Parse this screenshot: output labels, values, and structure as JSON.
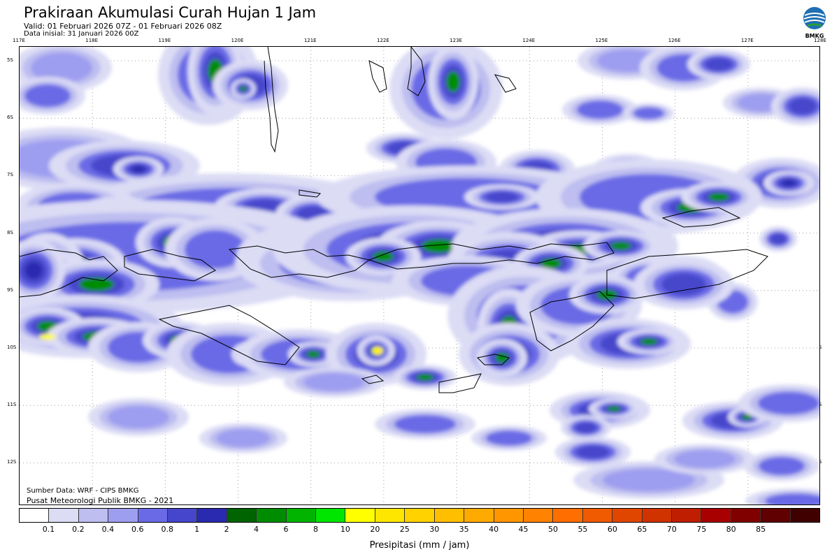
{
  "header": {
    "title": "Prakiraan Akumulasi Curah Hujan 1 Jam",
    "valid": "Valid: 01 Februari 2026 07Z - 01 Februari 2026 08Z",
    "initial": "Data inisial: 31 Januari 2026 00Z"
  },
  "logo": {
    "label": "BMKG",
    "icon": "bmkg-logo-icon"
  },
  "map": {
    "lon_labels": [
      "117E",
      "118E",
      "119E",
      "120E",
      "121E",
      "122E",
      "123E",
      "124E",
      "125E",
      "126E",
      "127E",
      "128E"
    ],
    "lat_labels": [
      "5S",
      "6S",
      "7S",
      "8S",
      "9S",
      "10S",
      "11S",
      "12S"
    ],
    "source": "Sumber Data: WRF - CIPS BMKG",
    "credit": "Pusat Meteorologi Publik BMKG - 2021"
  },
  "colorbar": {
    "colors": [
      "#ffffff",
      "#dcdcf5",
      "#bebef0",
      "#9e9ef0",
      "#6a6ae6",
      "#4646cc",
      "#2a2ab0",
      "#006400",
      "#008c00",
      "#00b400",
      "#00e600",
      "#ffff00",
      "#ffe600",
      "#ffd200",
      "#ffbe00",
      "#ffaa00",
      "#ff9600",
      "#ff8200",
      "#ff6e00",
      "#f05a00",
      "#e04600",
      "#d03200",
      "#c01e00",
      "#a80000",
      "#800000",
      "#600000",
      "#400000"
    ],
    "labels": [
      "0.1",
      "0.2",
      "0.4",
      "0.6",
      "0.8",
      "1",
      "2",
      "4",
      "6",
      "8",
      "10",
      "20",
      "25",
      "30",
      "35",
      "40",
      "45",
      "50",
      "55",
      "60",
      "65",
      "70",
      "75",
      "80",
      "85"
    ],
    "unit": "Presipitasi (mm / jam)"
  }
}
